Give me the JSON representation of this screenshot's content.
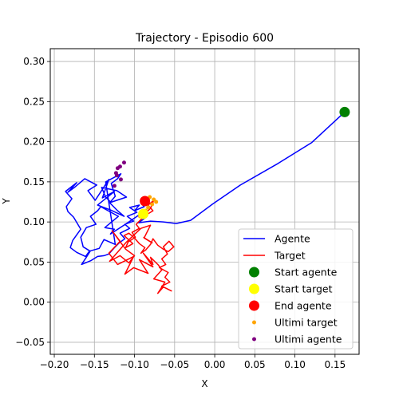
{
  "chart_data": {
    "type": "line",
    "title": "Trajectory - Episodio 600",
    "xlabel": "X",
    "ylabel": "Y",
    "xlim": [
      -0.205,
      0.18
    ],
    "ylim": [
      -0.065,
      0.316
    ],
    "x_ticks": [
      -0.2,
      -0.15,
      -0.1,
      -0.05,
      0.0,
      0.05,
      0.1,
      0.15
    ],
    "x_tick_labels": [
      "−0.20",
      "−0.15",
      "−0.10",
      "−0.05",
      "0.00",
      "0.05",
      "0.10",
      "0.15"
    ],
    "y_ticks": [
      -0.05,
      0.0,
      0.05,
      0.1,
      0.15,
      0.2,
      0.25,
      0.3
    ],
    "y_tick_labels": [
      "−0.05",
      "0.00",
      "0.05",
      "0.10",
      "0.15",
      "0.20",
      "0.25",
      "0.30"
    ],
    "grid": true,
    "legend_position": "lower-right",
    "colors": {
      "agente": "#0000ff",
      "target": "#ff0000",
      "start_agente": "#008000",
      "start_target": "#ffff00",
      "end_agente": "#ff0000",
      "ultimi_target": "#ffa500",
      "ultimi_agente": "#800080"
    },
    "series": [
      {
        "name": "Agente",
        "kind": "line",
        "color": "#0000ff",
        "x": [
          0.162,
          0.121,
          0.079,
          0.032,
          -0.003,
          -0.03,
          -0.048,
          -0.064,
          -0.08,
          -0.095,
          -0.088,
          -0.094,
          -0.11,
          -0.13,
          -0.125,
          -0.137,
          -0.12,
          -0.131,
          -0.142,
          -0.146,
          -0.155,
          -0.148,
          -0.16,
          -0.167,
          -0.164,
          -0.156,
          -0.161,
          -0.172,
          -0.18,
          -0.177,
          -0.167,
          -0.176,
          -0.183,
          -0.185,
          -0.178,
          -0.186,
          -0.172,
          -0.183,
          -0.175,
          -0.162,
          -0.147,
          -0.158,
          -0.149,
          -0.132,
          -0.14,
          -0.125,
          -0.146,
          -0.13,
          -0.113,
          -0.121,
          -0.131,
          -0.11,
          -0.122,
          -0.141,
          -0.136,
          -0.13,
          -0.124,
          -0.129,
          -0.121,
          -0.117,
          -0.136,
          -0.124,
          -0.138,
          -0.144,
          -0.155,
          -0.16,
          -0.166,
          -0.154,
          -0.146,
          -0.138,
          -0.132,
          -0.124,
          -0.119,
          -0.112,
          -0.118,
          -0.106,
          -0.112,
          -0.101,
          -0.109,
          -0.097,
          -0.106,
          -0.094,
          -0.1,
          -0.088,
          -0.092,
          -0.087
        ],
        "y": [
          0.237,
          0.199,
          0.173,
          0.146,
          0.122,
          0.102,
          0.098,
          0.1,
          0.101,
          0.099,
          0.104,
          0.109,
          0.098,
          0.085,
          0.091,
          0.093,
          0.107,
          0.113,
          0.119,
          0.114,
          0.107,
          0.097,
          0.093,
          0.081,
          0.069,
          0.064,
          0.057,
          0.062,
          0.068,
          0.077,
          0.091,
          0.106,
          0.113,
          0.119,
          0.129,
          0.138,
          0.149,
          0.137,
          0.143,
          0.154,
          0.146,
          0.139,
          0.127,
          0.153,
          0.13,
          0.138,
          0.121,
          0.115,
          0.107,
          0.114,
          0.124,
          0.131,
          0.139,
          0.143,
          0.131,
          0.125,
          0.132,
          0.148,
          0.154,
          0.16,
          0.15,
          0.072,
          0.078,
          0.067,
          0.064,
          0.056,
          0.047,
          0.052,
          0.057,
          0.058,
          0.06,
          0.069,
          0.074,
          0.079,
          0.086,
          0.092,
          0.097,
          0.101,
          0.107,
          0.112,
          0.118,
          0.121,
          0.114,
          0.119,
          0.124,
          0.126
        ]
      },
      {
        "name": "Target",
        "kind": "line",
        "color": "#ff0000",
        "x": [
          -0.087,
          -0.08,
          -0.076,
          -0.083,
          -0.077,
          -0.085,
          -0.092,
          -0.098,
          -0.094,
          -0.103,
          -0.099,
          -0.108,
          -0.111,
          -0.102,
          -0.113,
          -0.107,
          -0.1,
          -0.094,
          -0.087,
          -0.092,
          -0.086,
          -0.08,
          -0.077,
          -0.071,
          -0.064,
          -0.058,
          -0.051,
          -0.057,
          -0.064,
          -0.059,
          -0.066,
          -0.061,
          -0.069,
          -0.058,
          -0.062,
          -0.056,
          -0.066,
          -0.054,
          -0.064,
          -0.071,
          -0.062,
          -0.076,
          -0.066,
          -0.07,
          -0.08,
          -0.077,
          -0.089,
          -0.077,
          -0.094,
          -0.083,
          -0.101,
          -0.112,
          -0.101,
          -0.121,
          -0.132,
          -0.118,
          -0.128,
          -0.111,
          -0.1,
          -0.107,
          -0.118,
          -0.131,
          -0.11,
          -0.092,
          -0.08,
          -0.088,
          -0.078,
          -0.089
        ],
        "y": [
          0.11,
          0.117,
          0.127,
          0.121,
          0.114,
          0.109,
          0.103,
          0.097,
          0.092,
          0.087,
          0.081,
          0.075,
          0.068,
          0.073,
          0.083,
          0.086,
          0.08,
          0.073,
          0.068,
          0.061,
          0.065,
          0.072,
          0.079,
          0.071,
          0.066,
          0.063,
          0.069,
          0.076,
          0.069,
          0.06,
          0.054,
          0.047,
          0.043,
          0.037,
          0.031,
          0.025,
          0.02,
          0.014,
          0.019,
          0.011,
          0.025,
          0.029,
          0.04,
          0.046,
          0.056,
          0.047,
          0.061,
          0.044,
          0.053,
          0.036,
          0.043,
          0.035,
          0.057,
          0.047,
          0.061,
          0.076,
          0.089,
          0.066,
          0.058,
          0.049,
          0.058,
          0.051,
          0.075,
          0.092,
          0.096,
          0.08,
          0.074,
          0.081
        ]
      },
      {
        "name": "Start agente",
        "kind": "point",
        "color": "#008000",
        "x": [
          0.162
        ],
        "y": [
          0.237
        ]
      },
      {
        "name": "Start target",
        "kind": "point",
        "color": "#ffff00",
        "x": [
          -0.089
        ],
        "y": [
          0.11
        ]
      },
      {
        "name": "End agente",
        "kind": "point",
        "color": "#ff0000",
        "x": [
          -0.087
        ],
        "y": [
          0.126
        ]
      },
      {
        "name": "Ultimi target",
        "kind": "points-small",
        "color": "#ffa500",
        "x": [
          -0.093,
          -0.089,
          -0.083,
          -0.078,
          -0.073,
          -0.081,
          -0.086,
          -0.076
        ],
        "y": [
          0.107,
          0.112,
          0.118,
          0.122,
          0.125,
          0.131,
          0.114,
          0.128
        ]
      },
      {
        "name": "Ultimi agente",
        "kind": "points-small",
        "color": "#800080",
        "x": [
          -0.125,
          -0.122,
          -0.118,
          -0.113,
          -0.121,
          -0.117,
          -0.123
        ],
        "y": [
          0.145,
          0.158,
          0.169,
          0.174,
          0.167,
          0.153,
          0.161
        ]
      }
    ],
    "legend": [
      {
        "label": "Agente",
        "kind": "line",
        "color": "#0000ff"
      },
      {
        "label": "Target",
        "kind": "line",
        "color": "#ff0000"
      },
      {
        "label": "Start agente",
        "kind": "point",
        "color": "#008000"
      },
      {
        "label": "Start target",
        "kind": "point",
        "color": "#ffff00"
      },
      {
        "label": "End agente",
        "kind": "point",
        "color": "#ff0000"
      },
      {
        "label": "Ultimi target",
        "kind": "points-small",
        "color": "#ffa500"
      },
      {
        "label": "Ultimi agente",
        "kind": "points-small",
        "color": "#800080"
      }
    ]
  }
}
